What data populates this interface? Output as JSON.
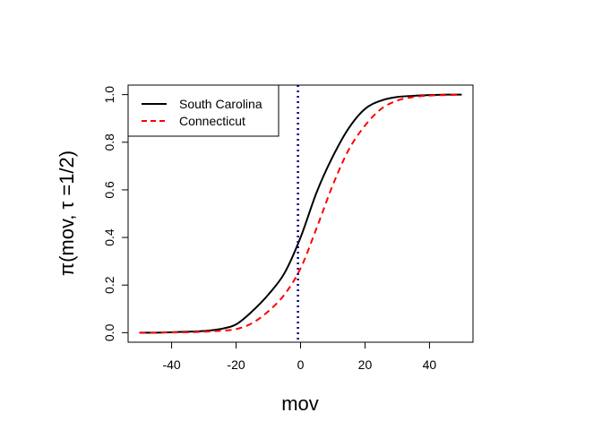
{
  "chart_data": {
    "type": "line",
    "xlabel": "mov",
    "ylabel": "π(mov, τ =1/2)",
    "xlim": [
      -53.5,
      53.5
    ],
    "ylim": [
      -0.04,
      1.04
    ],
    "x_ticks": [
      -40,
      -20,
      0,
      20,
      40
    ],
    "y_ticks": [
      0.0,
      0.2,
      0.4,
      0.6,
      0.8,
      1.0
    ],
    "x_tick_labels": [
      "-40",
      "-20",
      "0",
      "20",
      "40"
    ],
    "y_tick_labels": [
      "0.0",
      "0.2",
      "0.4",
      "0.6",
      "0.8",
      "1.0"
    ],
    "grid": false,
    "legend_position": "top-left",
    "x": [
      -50,
      -45,
      -40,
      -35,
      -30,
      -25,
      -20,
      -15,
      -10,
      -5,
      0,
      5,
      10,
      15,
      20,
      25,
      30,
      35,
      40,
      45,
      50
    ],
    "series": [
      {
        "name": "South Carolina",
        "color": "#000000",
        "dash": "solid",
        "values": [
          0.0,
          0.0,
          0.002,
          0.004,
          0.007,
          0.015,
          0.035,
          0.09,
          0.16,
          0.25,
          0.4,
          0.59,
          0.74,
          0.86,
          0.94,
          0.975,
          0.99,
          0.995,
          0.998,
          1.0,
          1.0
        ]
      },
      {
        "name": "Connecticut",
        "color": "#ff0000",
        "dash": "dashed",
        "values": [
          0.0,
          0.0,
          0.001,
          0.002,
          0.004,
          0.008,
          0.015,
          0.04,
          0.09,
          0.16,
          0.27,
          0.44,
          0.62,
          0.77,
          0.87,
          0.94,
          0.975,
          0.99,
          0.996,
          0.998,
          1.0
        ]
      }
    ],
    "vline": {
      "x": -0.8,
      "color": "#00008b",
      "dash": "dotted"
    }
  }
}
